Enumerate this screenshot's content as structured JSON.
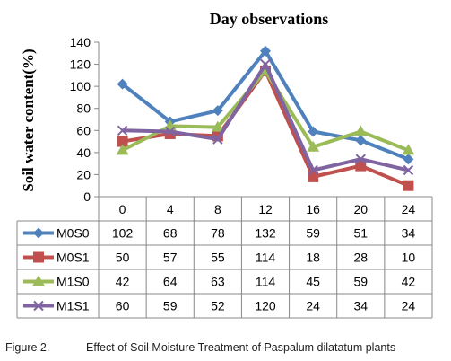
{
  "chart_data": {
    "type": "line",
    "title": "Day observations",
    "ylabel": "Soil water content(%)",
    "xlabel": "",
    "categories": [
      "0",
      "4",
      "8",
      "12",
      "16",
      "20",
      "24"
    ],
    "ylim": [
      0,
      140
    ],
    "yticks": [
      0,
      20,
      40,
      60,
      80,
      100,
      120,
      140
    ],
    "grid": false,
    "legend": "data-table-left",
    "series": [
      {
        "name": "M0S0",
        "values": [
          102,
          68,
          78,
          132,
          59,
          51,
          34
        ],
        "color": "#4f81bd",
        "marker": "diamond"
      },
      {
        "name": "M0S1",
        "values": [
          50,
          57,
          55,
          114,
          18,
          28,
          10
        ],
        "color": "#c0504d",
        "marker": "square"
      },
      {
        "name": "M1S0",
        "values": [
          42,
          64,
          63,
          114,
          45,
          59,
          42
        ],
        "color": "#9bbb59",
        "marker": "triangle"
      },
      {
        "name": "M1S1",
        "values": [
          60,
          59,
          52,
          120,
          24,
          34,
          24
        ],
        "color": "#8064a2",
        "marker": "x"
      }
    ]
  },
  "caption": {
    "label": "Figure 2.",
    "text": "Effect of Soil Moisture Treatment of Paspalum dilatatum plants"
  }
}
